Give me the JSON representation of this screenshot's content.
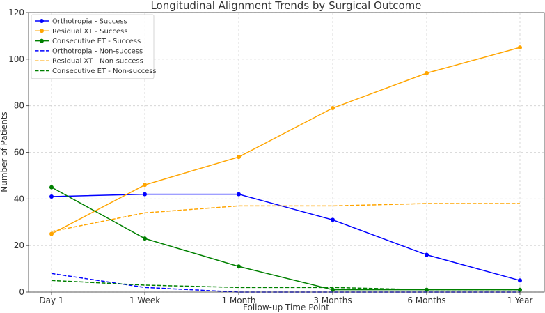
{
  "chart_data": {
    "type": "line",
    "title": "Longitudinal Alignment Trends by Surgical Outcome",
    "xlabel": "Follow-up Time Point",
    "ylabel": "Number of Patients",
    "categories": [
      "Day 1",
      "1 Week",
      "1 Month",
      "3 Months",
      "6 Months",
      "1 Year"
    ],
    "ylim": [
      0,
      120
    ],
    "yticks": [
      0,
      20,
      40,
      60,
      80,
      100,
      120
    ],
    "grid": true,
    "legend_position": "top-left",
    "series": [
      {
        "name": "Orthotropia - Success",
        "values": [
          41,
          42,
          42,
          31,
          16,
          5
        ],
        "color": "#0000ff",
        "style": "solid",
        "markers": true
      },
      {
        "name": "Residual XT - Success",
        "values": [
          25,
          46,
          58,
          79,
          94,
          105
        ],
        "color": "#ffa500",
        "style": "solid",
        "markers": true
      },
      {
        "name": "Consecutive ET - Success",
        "values": [
          45,
          23,
          11,
          1,
          1,
          1
        ],
        "color": "#008000",
        "style": "solid",
        "markers": true
      },
      {
        "name": "Orthotropia - Non-success",
        "values": [
          8,
          2,
          0,
          0,
          0,
          0
        ],
        "color": "#0000ff",
        "style": "dashed",
        "markers": false
      },
      {
        "name": "Residual XT - Non-success",
        "values": [
          26,
          34,
          37,
          37,
          38,
          38
        ],
        "color": "#ffa500",
        "style": "dashed",
        "markers": false
      },
      {
        "name": "Consecutive ET - Non-success",
        "values": [
          5,
          3,
          2,
          2,
          1,
          1
        ],
        "color": "#008000",
        "style": "dashed",
        "markers": false
      }
    ]
  }
}
